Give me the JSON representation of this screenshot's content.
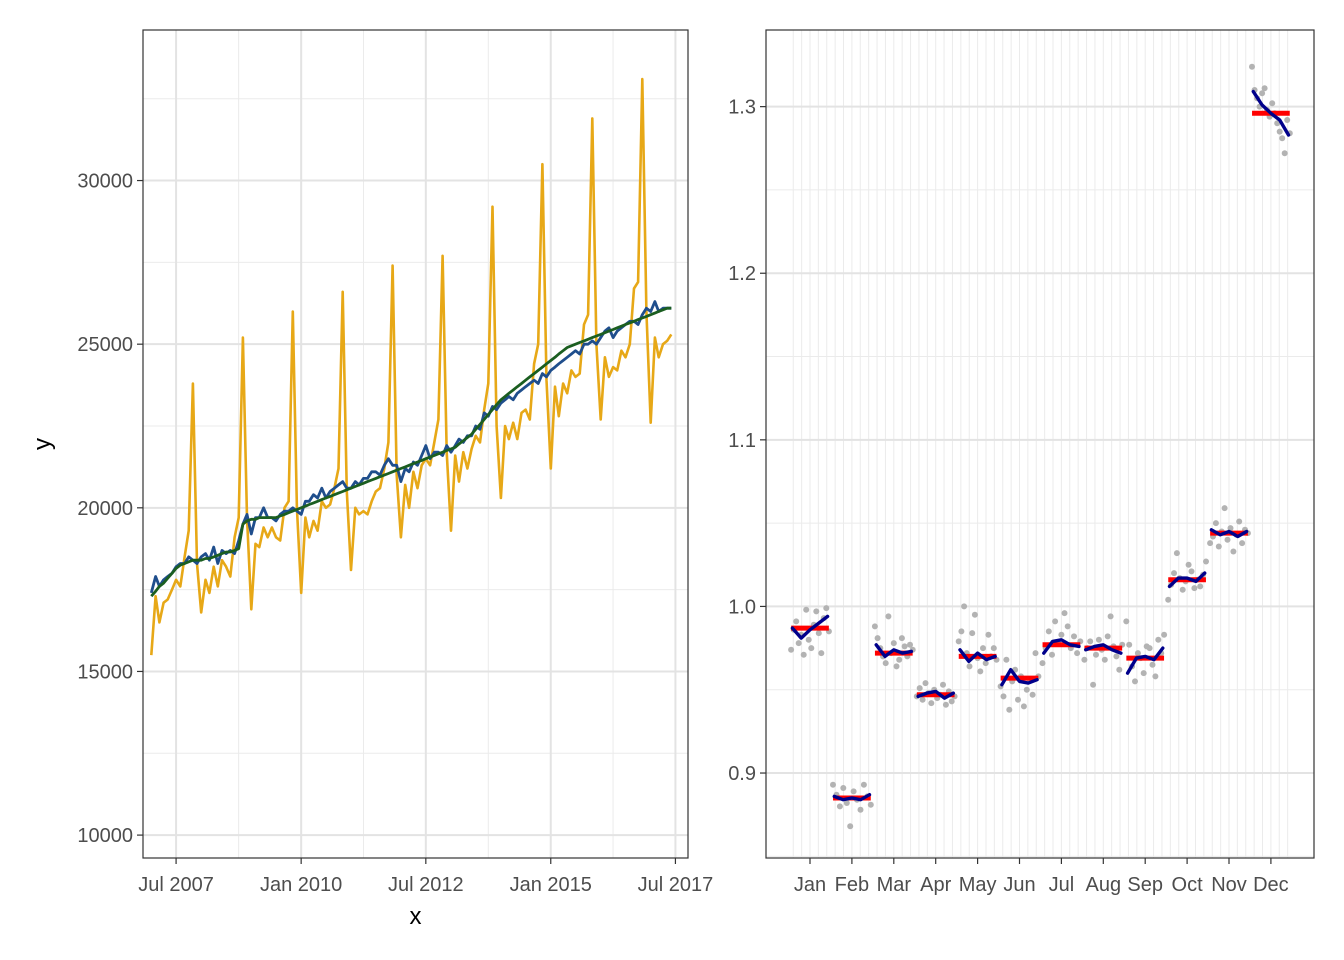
{
  "chart_data": [
    {
      "type": "line",
      "title": "",
      "xlabel": "x",
      "ylabel": "y",
      "grid": true,
      "legend": "none",
      "x_range": [
        "2006-11-01",
        "2017-10-01"
      ],
      "ylim": [
        9300,
        34600
      ],
      "yticks": [
        10000,
        15000,
        20000,
        25000,
        30000
      ],
      "xticks": [
        {
          "label": "Jul 2007",
          "date": "2007-07-01"
        },
        {
          "label": "Jan 2010",
          "date": "2010-01-01"
        },
        {
          "label": "Jul 2012",
          "date": "2012-07-01"
        },
        {
          "label": "Jan 2015",
          "date": "2015-01-01"
        },
        {
          "label": "Jul 2017",
          "date": "2017-07-01"
        }
      ],
      "start": "2007-01-01",
      "frequency": "monthly",
      "series": [
        {
          "color": "#E7A817",
          "values": [
            15500,
            17300,
            16500,
            17100,
            17200,
            17500,
            17800,
            17600,
            18500,
            19300,
            23800,
            18300,
            16800,
            17800,
            17400,
            18200,
            17600,
            18400,
            18200,
            17900,
            19100,
            19700,
            25200,
            19700,
            16900,
            18900,
            18800,
            19400,
            19100,
            19400,
            19100,
            19000,
            20000,
            20200,
            26000,
            20000,
            17400,
            19700,
            19100,
            19600,
            19300,
            20200,
            20000,
            20100,
            20600,
            21200,
            26600,
            20500,
            18100,
            20000,
            19800,
            19900,
            19800,
            20200,
            20500,
            20600,
            21200,
            22000,
            27400,
            21000,
            19100,
            20700,
            20000,
            21100,
            20600,
            21300,
            21500,
            21300,
            22000,
            22700,
            27700,
            21700,
            19300,
            21600,
            20800,
            21700,
            21200,
            21800,
            22200,
            22000,
            23000,
            23800,
            29200,
            22500,
            20300,
            22500,
            22100,
            22600,
            22100,
            22900,
            23000,
            22700,
            24400,
            25000,
            30500,
            23900,
            21200,
            23700,
            22800,
            23800,
            23500,
            24200,
            24000,
            24100,
            25600,
            25900,
            31900,
            25000,
            22700,
            24600,
            24000,
            24300,
            24200,
            24800,
            24600,
            25000,
            26700,
            26900,
            33100,
            26000,
            22600,
            25200,
            24600,
            25000,
            25100,
            25300
          ]
        },
        {
          "color": "#1F4E8C",
          "values": [
            17400,
            17900,
            17600,
            17800,
            17900,
            18000,
            18200,
            18300,
            18300,
            18500,
            18400,
            18300,
            18500,
            18600,
            18400,
            18800,
            18300,
            18700,
            18600,
            18700,
            18600,
            19000,
            19500,
            19800,
            19200,
            19700,
            19700,
            20000,
            19700,
            19700,
            19600,
            19800,
            19900,
            19900,
            20000,
            19900,
            19800,
            20200,
            20200,
            20400,
            20300,
            20600,
            20300,
            20500,
            20600,
            20700,
            20800,
            20600,
            20600,
            20800,
            20700,
            20900,
            20900,
            21100,
            21100,
            21000,
            21300,
            21500,
            21300,
            21300,
            20800,
            21200,
            21100,
            21400,
            21300,
            21600,
            21900,
            21500,
            21700,
            21700,
            21600,
            21900,
            21700,
            21900,
            22100,
            22000,
            22200,
            22200,
            22500,
            22400,
            22900,
            22800,
            23100,
            23000,
            23200,
            23300,
            23400,
            23300,
            23500,
            23600,
            23700,
            23800,
            23900,
            23800,
            24100,
            24000,
            24200,
            24300,
            24400,
            24500,
            24600,
            24700,
            24800,
            24700,
            25000,
            25000,
            25100,
            25000,
            25200,
            25400,
            25500,
            25200,
            25400,
            25500,
            25600,
            25700,
            25700,
            25600,
            25900,
            26100,
            26000,
            26300,
            26000,
            26100,
            26100,
            26100
          ]
        },
        {
          "color": "#1B5E20",
          "values": [
            17300,
            17450,
            17600,
            17700,
            17850,
            18000,
            18150,
            18250,
            18300,
            18350,
            18400,
            18400,
            18400,
            18450,
            18450,
            18500,
            18550,
            18600,
            18650,
            18650,
            18700,
            18750,
            19500,
            19600,
            19650,
            19650,
            19700,
            19700,
            19700,
            19700,
            19700,
            19750,
            19800,
            19850,
            19900,
            19950,
            20000,
            20050,
            20100,
            20150,
            20200,
            20250,
            20300,
            20350,
            20400,
            20450,
            20500,
            20550,
            20600,
            20650,
            20700,
            20750,
            20800,
            20850,
            20900,
            20950,
            21000,
            21050,
            21100,
            21150,
            21200,
            21250,
            21300,
            21350,
            21400,
            21450,
            21500,
            21550,
            21600,
            21650,
            21700,
            21750,
            21800,
            21850,
            21950,
            22050,
            22150,
            22250,
            22400,
            22550,
            22700,
            22850,
            23000,
            23150,
            23300,
            23400,
            23500,
            23600,
            23700,
            23800,
            23900,
            24000,
            24100,
            24200,
            24300,
            24400,
            24500,
            24600,
            24700,
            24800,
            24900,
            24950,
            25000,
            25050,
            25100,
            25150,
            25200,
            25250,
            25300,
            25350,
            25400,
            25450,
            25500,
            25550,
            25600,
            25650,
            25700,
            25750,
            25800,
            25850,
            25900,
            25950,
            26000,
            26050,
            26100,
            26100
          ]
        }
      ]
    },
    {
      "type": "scatter",
      "title": "",
      "xlabel": "",
      "ylabel": "",
      "grid": true,
      "legend": "none",
      "categories": [
        "Jan",
        "Feb",
        "Mar",
        "Apr",
        "May",
        "Jun",
        "Jul",
        "Aug",
        "Sep",
        "Oct",
        "Nov",
        "Dec"
      ],
      "ylim": [
        0.849,
        1.346
      ],
      "yticks": [
        "0.9",
        "1.0",
        "1.1",
        "1.2",
        "1.3"
      ],
      "means": [
        0.987,
        0.885,
        0.972,
        0.947,
        0.97,
        0.957,
        0.977,
        0.975,
        0.969,
        1.016,
        1.044,
        1.296
      ],
      "mean_color": "#FF0000",
      "trend_color": "#00008B",
      "point_color": "#B3B3B3",
      "trend": [
        [
          0.987,
          0.981,
          0.986,
          0.99,
          0.994
        ],
        [
          0.886,
          0.884,
          0.885,
          0.884,
          0.887
        ],
        [
          0.977,
          0.97,
          0.974,
          0.972,
          0.973
        ],
        [
          0.946,
          0.948,
          0.949,
          0.945,
          0.948
        ],
        [
          0.974,
          0.967,
          0.972,
          0.968,
          0.97
        ],
        [
          0.953,
          0.962,
          0.955,
          0.954,
          0.956
        ],
        [
          0.972,
          0.979,
          0.98,
          0.977,
          0.976
        ],
        [
          0.974,
          0.976,
          0.977,
          0.974,
          0.972
        ],
        [
          0.96,
          0.969,
          0.97,
          0.968,
          0.975
        ],
        [
          1.012,
          1.017,
          1.017,
          1.015,
          1.02
        ],
        [
          1.046,
          1.043,
          1.045,
          1.042,
          1.045
        ],
        [
          1.309,
          1.301,
          1.296,
          1.292,
          1.283
        ]
      ],
      "points": [
        [
          0.974,
          0.986,
          0.991,
          0.978,
          0.983,
          0.971,
          0.998,
          0.98,
          0.975,
          0.989,
          0.997,
          0.984,
          0.972,
          0.993,
          0.999,
          0.985
        ],
        [
          0.893,
          0.887,
          0.88,
          0.891,
          0.882,
          0.868,
          0.889,
          0.884,
          0.878,
          0.893,
          0.886,
          0.881
        ],
        [
          0.988,
          0.981,
          0.975,
          0.97,
          0.966,
          0.994,
          0.972,
          0.978,
          0.964,
          0.968,
          0.981,
          0.976,
          0.97,
          0.977,
          0.974
        ],
        [
          0.946,
          0.951,
          0.944,
          0.954,
          0.948,
          0.942,
          0.95,
          0.945,
          0.947,
          0.953,
          0.941,
          0.949,
          0.943,
          0.946
        ],
        [
          0.979,
          0.985,
          1.0,
          0.972,
          0.964,
          0.984,
          0.995,
          0.969,
          0.961,
          0.975,
          0.966,
          0.983,
          0.97,
          0.975,
          0.968
        ],
        [
          0.952,
          0.946,
          0.968,
          0.938,
          0.955,
          0.962,
          0.944,
          0.958,
          0.94,
          0.95,
          0.956,
          0.947,
          0.972,
          0.958
        ],
        [
          0.966,
          0.975,
          0.985,
          0.971,
          0.991,
          0.978,
          0.983,
          0.996,
          0.988,
          0.975,
          0.982,
          0.972,
          0.979
        ],
        [
          0.968,
          0.975,
          0.979,
          0.953,
          0.971,
          0.98,
          0.974,
          0.968,
          0.982,
          0.994,
          0.976,
          0.97,
          0.962,
          0.977
        ],
        [
          0.991,
          0.977,
          0.964,
          0.955,
          0.972,
          0.969,
          0.96,
          0.976,
          0.975,
          0.965,
          0.958,
          0.98,
          0.972,
          0.983
        ],
        [
          1.004,
          1.013,
          1.02,
          1.032,
          1.017,
          1.01,
          1.015,
          1.025,
          1.021,
          1.011,
          1.016,
          1.012,
          1.019,
          1.027
        ],
        [
          1.038,
          1.042,
          1.05,
          1.036,
          1.045,
          1.059,
          1.04,
          1.047,
          1.033,
          1.043,
          1.051,
          1.038,
          1.046,
          1.044
        ],
        [
          1.324,
          1.31,
          1.305,
          1.3,
          1.308,
          1.311,
          1.298,
          1.294,
          1.302,
          1.296,
          1.29,
          1.285,
          1.281,
          1.272,
          1.292,
          1.284
        ]
      ]
    }
  ]
}
